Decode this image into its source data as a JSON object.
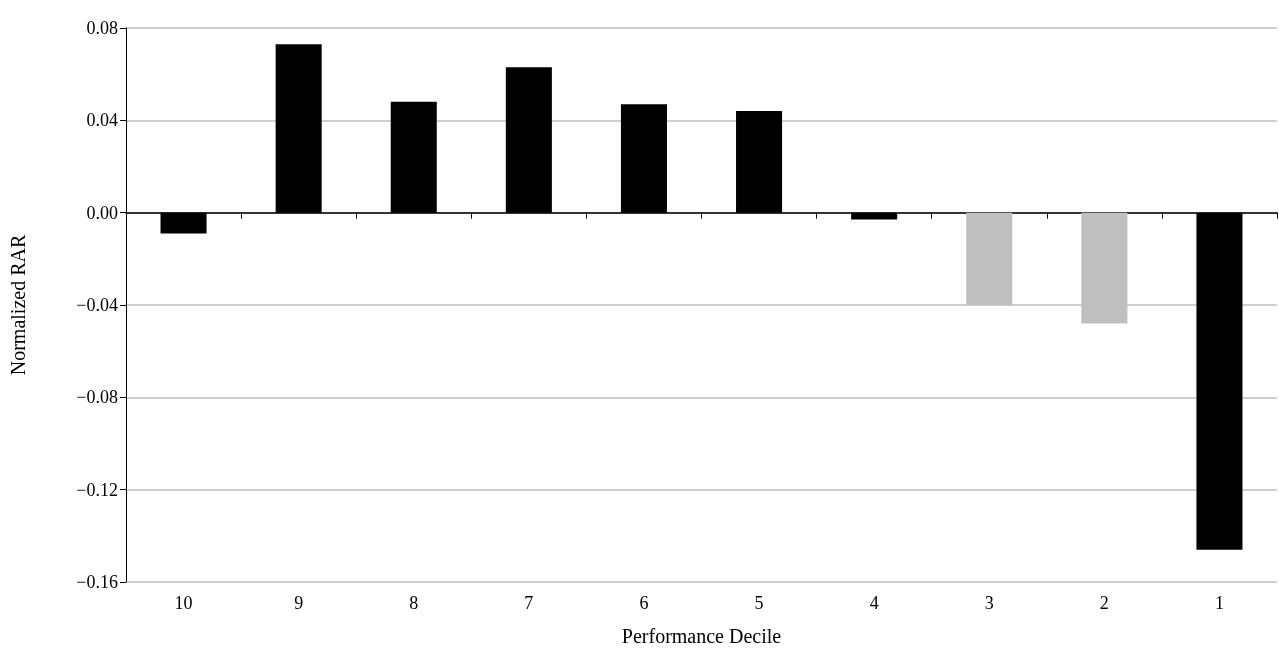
{
  "chart_data": {
    "type": "bar",
    "xlabel": "Performance Decile",
    "ylabel": "Normalized RAR",
    "categories": [
      "10",
      "9",
      "8",
      "7",
      "6",
      "5",
      "4",
      "3",
      "2",
      "1"
    ],
    "values": [
      -0.009,
      0.073,
      0.048,
      0.063,
      0.047,
      0.044,
      -0.003,
      -0.04,
      -0.048,
      -0.146
    ],
    "colors": [
      "#000000",
      "#000000",
      "#000000",
      "#000000",
      "#000000",
      "#000000",
      "#000000",
      "#bfbfbf",
      "#bfbfbf",
      "#000000"
    ],
    "ylim": [
      -0.16,
      0.08
    ],
    "yticks": [
      {
        "value": -0.16,
        "label": "−0.16"
      },
      {
        "value": -0.12,
        "label": "−0.12"
      },
      {
        "value": -0.08,
        "label": "−0.08"
      },
      {
        "value": -0.04,
        "label": "−0.04"
      },
      {
        "value": 0,
        "label": "0.00"
      },
      0.04,
      0.08
    ],
    "grid": "y"
  }
}
